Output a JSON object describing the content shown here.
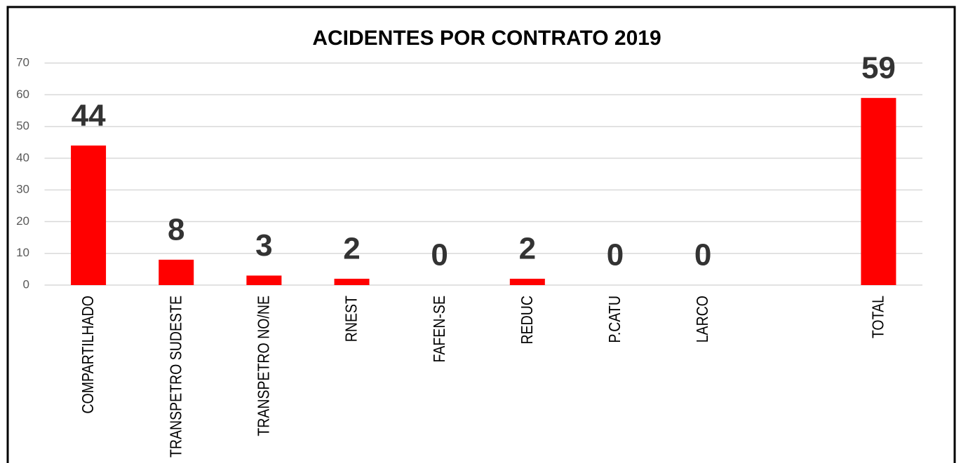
{
  "chart_data": {
    "type": "bar",
    "title": "ACIDENTES POR CONTRATO 2019",
    "categories": [
      "COMPARTILHADO",
      "TRANSPETRO SUDESTE",
      "TRANSPETRO NO/NE",
      "RNEST",
      "FAFEN-SE",
      "REDUC",
      "P.CATU",
      "LARCO",
      null,
      "TOTAL"
    ],
    "values": [
      44,
      8,
      3,
      2,
      0,
      2,
      0,
      0,
      null,
      59
    ],
    "color": "#ff0000",
    "ylim": [
      0,
      70
    ],
    "yticks": [
      0,
      10,
      20,
      30,
      40,
      50,
      60,
      70
    ],
    "grid": true
  }
}
